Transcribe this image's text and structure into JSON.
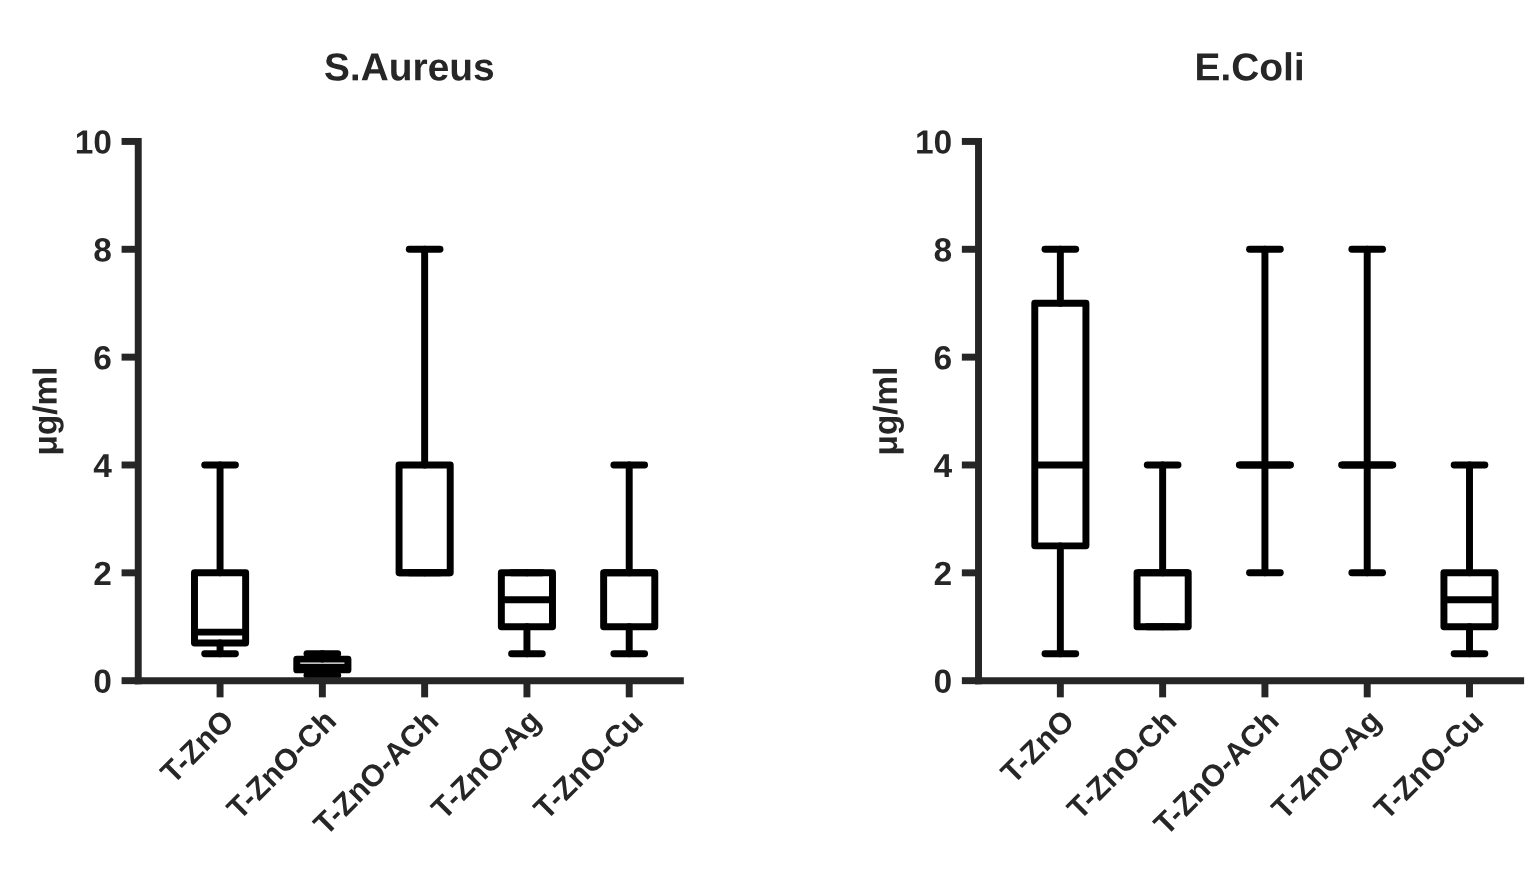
{
  "chart_data": [
    {
      "type": "box",
      "title": "S.Aureus",
      "ylabel": "μg/ml",
      "categories": [
        "T-ZnO",
        "T-ZnO-Ch",
        "T-ZnO-ACh",
        "T-ZnO-Ag",
        "T-ZnO-Cu"
      ],
      "ylim": [
        0,
        10
      ],
      "yticks": [
        0,
        2,
        4,
        6,
        8,
        10
      ],
      "grid": false,
      "legend": false,
      "boxes": [
        {
          "low": 0.5,
          "q1": 0.7,
          "median": 0.9,
          "q3": 2,
          "high": 4
        },
        {
          "low": 0.1,
          "q1": 0.2,
          "median": 0.25,
          "q3": 0.4,
          "high": 0.5
        },
        {
          "low": 2,
          "q1": 2,
          "median": 2,
          "q3": 4,
          "high": 8
        },
        {
          "low": 0.5,
          "q1": 1,
          "median": 1.5,
          "q3": 2,
          "high": 2
        },
        {
          "low": 0.5,
          "q1": 1,
          "median": 2,
          "q3": 2,
          "high": 4
        }
      ]
    },
    {
      "type": "box",
      "title": "E.Coli",
      "ylabel": "μg/ml",
      "categories": [
        "T-ZnO",
        "T-ZnO-Ch",
        "T-ZnO-ACh",
        "T-ZnO-Ag",
        "T-ZnO-Cu"
      ],
      "ylim": [
        0,
        10
      ],
      "yticks": [
        0,
        2,
        4,
        6,
        8,
        10
      ],
      "grid": false,
      "legend": false,
      "boxes": [
        {
          "low": 0.5,
          "q1": 2.5,
          "median": 4,
          "q3": 7,
          "high": 8
        },
        {
          "low": 1,
          "q1": 1,
          "median": 2,
          "q3": 2,
          "high": 4
        },
        {
          "low": 2,
          "q1": 4,
          "median": 4,
          "q3": 4,
          "high": 8
        },
        {
          "low": 2,
          "q1": 4,
          "median": 4,
          "q3": 4,
          "high": 8
        },
        {
          "low": 0.5,
          "q1": 1,
          "median": 1.5,
          "q3": 2,
          "high": 4
        }
      ]
    }
  ]
}
